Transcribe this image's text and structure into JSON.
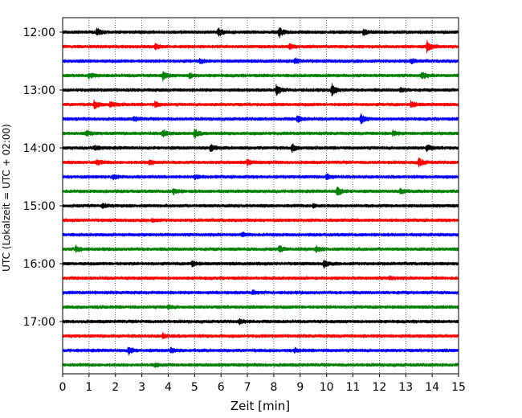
{
  "chart_data": {
    "type": "line",
    "title": "",
    "xlabel": "Zeit  [min]",
    "ylabel": "UTC (Lokalzeit = UTC + 02:00)",
    "xlim": [
      0,
      15
    ],
    "x_ticks": [
      "0",
      "1",
      "2",
      "3",
      "4",
      "5",
      "6",
      "7",
      "8",
      "9",
      "10",
      "11",
      "12",
      "13",
      "14",
      "15"
    ],
    "y_tick_labels": [
      "12:00",
      "13:00",
      "14:00",
      "15:00",
      "16:00",
      "17:00"
    ],
    "grid": "vertical dotted at each minute",
    "trace_colors": [
      "#000000",
      "#ff0000",
      "#0000ff",
      "#008000"
    ],
    "traces": [
      {
        "start": "12:00",
        "color": "#000000",
        "events": [
          [
            1.3,
            0.7
          ],
          [
            5.9,
            0.8
          ],
          [
            8.2,
            1.0
          ],
          [
            11.4,
            0.5
          ]
        ]
      },
      {
        "start": "12:15",
        "color": "#ff0000",
        "events": [
          [
            3.5,
            0.5
          ],
          [
            8.6,
            0.4
          ],
          [
            13.8,
            1.0
          ]
        ]
      },
      {
        "start": "12:30",
        "color": "#0000ff",
        "events": [
          [
            5.2,
            0.4
          ],
          [
            8.8,
            0.5
          ],
          [
            13.2,
            0.4
          ]
        ]
      },
      {
        "start": "12:45",
        "color": "#008000",
        "events": [
          [
            1.0,
            0.5
          ],
          [
            3.8,
            0.8
          ],
          [
            4.8,
            0.5
          ],
          [
            13.6,
            0.6
          ]
        ]
      },
      {
        "start": "13:00",
        "color": "#000000",
        "events": [
          [
            8.1,
            1.0
          ],
          [
            10.2,
            1.2
          ],
          [
            12.8,
            0.4
          ]
        ]
      },
      {
        "start": "13:15",
        "color": "#ff0000",
        "events": [
          [
            1.2,
            0.8
          ],
          [
            1.8,
            0.6
          ],
          [
            3.5,
            0.5
          ],
          [
            13.2,
            0.6
          ]
        ]
      },
      {
        "start": "13:30",
        "color": "#0000ff",
        "events": [
          [
            2.7,
            0.4
          ],
          [
            8.9,
            0.6
          ],
          [
            11.3,
            0.9
          ]
        ]
      },
      {
        "start": "13:45",
        "color": "#008000",
        "events": [
          [
            0.9,
            0.5
          ],
          [
            3.8,
            0.7
          ],
          [
            5.0,
            0.8
          ],
          [
            12.5,
            0.4
          ]
        ]
      },
      {
        "start": "14:00",
        "color": "#000000",
        "events": [
          [
            1.2,
            0.5
          ],
          [
            5.6,
            0.8
          ],
          [
            8.7,
            0.7
          ],
          [
            13.8,
            0.6
          ]
        ]
      },
      {
        "start": "14:15",
        "color": "#ff0000",
        "events": [
          [
            1.3,
            0.5
          ],
          [
            3.3,
            0.5
          ],
          [
            7.0,
            0.5
          ],
          [
            13.5,
            0.8
          ]
        ]
      },
      {
        "start": "14:30",
        "color": "#0000ff",
        "events": [
          [
            1.9,
            0.4
          ],
          [
            5.0,
            0.4
          ],
          [
            10.0,
            0.5
          ]
        ]
      },
      {
        "start": "14:45",
        "color": "#008000",
        "events": [
          [
            4.2,
            0.5
          ],
          [
            10.4,
            0.9
          ],
          [
            12.8,
            0.6
          ]
        ]
      },
      {
        "start": "15:00",
        "color": "#000000",
        "events": [
          [
            1.5,
            0.4
          ],
          [
            9.5,
            0.3
          ]
        ]
      },
      {
        "start": "15:15",
        "color": "#ff0000",
        "events": [
          [
            3.4,
            0.3
          ]
        ]
      },
      {
        "start": "15:30",
        "color": "#0000ff",
        "events": [
          [
            6.8,
            0.3
          ]
        ]
      },
      {
        "start": "15:45",
        "color": "#008000",
        "events": [
          [
            0.5,
            0.6
          ],
          [
            8.2,
            0.6
          ],
          [
            9.6,
            0.5
          ]
        ]
      },
      {
        "start": "16:00",
        "color": "#000000",
        "events": [
          [
            4.9,
            0.6
          ],
          [
            9.9,
            0.7
          ]
        ]
      },
      {
        "start": "16:15",
        "color": "#ff0000",
        "events": [
          [
            12.4,
            0.3
          ]
        ]
      },
      {
        "start": "16:30",
        "color": "#0000ff",
        "events": [
          [
            7.2,
            0.3
          ]
        ]
      },
      {
        "start": "16:45",
        "color": "#008000",
        "events": [
          [
            4.0,
            0.3
          ]
        ]
      },
      {
        "start": "17:00",
        "color": "#000000",
        "events": [
          [
            6.7,
            0.4
          ]
        ]
      },
      {
        "start": "17:15",
        "color": "#ff0000",
        "events": [
          [
            3.8,
            0.4
          ]
        ]
      },
      {
        "start": "17:30",
        "color": "#0000ff",
        "events": [
          [
            2.5,
            0.7
          ],
          [
            4.1,
            0.5
          ],
          [
            8.8,
            0.3
          ]
        ]
      },
      {
        "start": "17:45",
        "color": "#008000",
        "events": [
          [
            3.5,
            0.3
          ]
        ]
      }
    ]
  }
}
